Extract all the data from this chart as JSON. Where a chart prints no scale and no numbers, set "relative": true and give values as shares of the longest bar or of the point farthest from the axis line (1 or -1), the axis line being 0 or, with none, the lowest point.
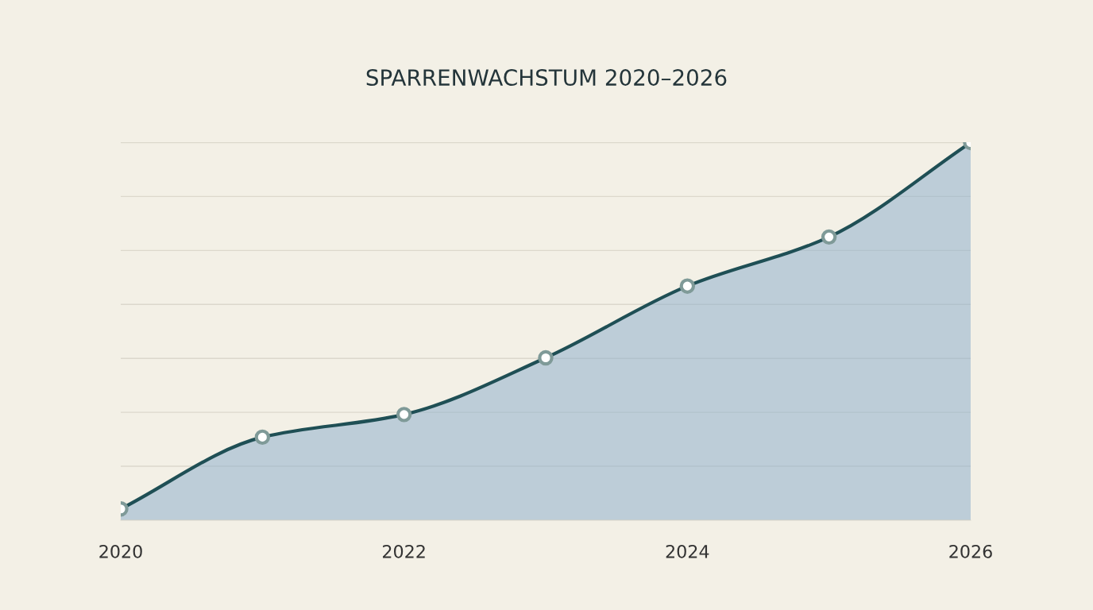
{
  "chart_data": {
    "type": "area",
    "title": "SPARRENWACHSTUM 2020–2026",
    "x": [
      2020,
      2021,
      2022,
      2023,
      2024,
      2025,
      2026
    ],
    "xlim": [
      2020,
      2026
    ],
    "xticks": [
      2020,
      2022,
      2024,
      2026
    ],
    "relative": true,
    "grid": "y",
    "marker": "circle",
    "line_style": "solid",
    "series": [
      {
        "color": "#1f4f55",
        "values": [
          0.03,
          0.22,
          0.28,
          0.43,
          0.62,
          0.75,
          1.0
        ]
      }
    ]
  }
}
